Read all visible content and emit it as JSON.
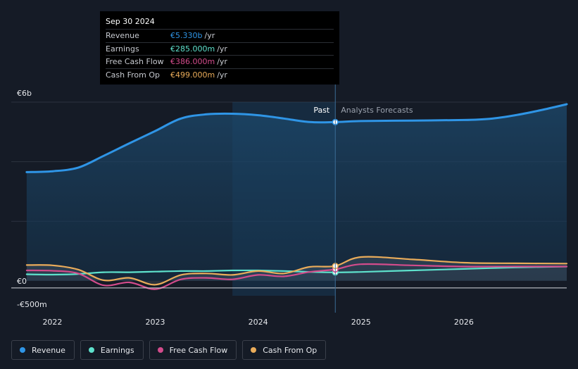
{
  "colors": {
    "revenue": "#2f95e6",
    "earnings": "#5ee1cc",
    "fcf": "#d34c8c",
    "cfo": "#eaac5a",
    "background": "#151b26"
  },
  "tooltip": {
    "date": "Sep 30 2024",
    "rows": [
      {
        "label": "Revenue",
        "value": "€5.330b",
        "unit": "/yr"
      },
      {
        "label": "Earnings",
        "value": "€285.000m",
        "unit": "/yr"
      },
      {
        "label": "Free Cash Flow",
        "value": "€386.000m",
        "unit": "/yr"
      },
      {
        "label": "Cash From Op",
        "value": "€499.000m",
        "unit": "/yr"
      }
    ]
  },
  "legend": [
    {
      "label": "Revenue",
      "icon": "revenue-dot-icon"
    },
    {
      "label": "Earnings",
      "icon": "earnings-dot-icon"
    },
    {
      "label": "Free Cash Flow",
      "icon": "fcf-dot-icon"
    },
    {
      "label": "Cash From Op",
      "icon": "cfo-dot-icon"
    }
  ],
  "chart_data": {
    "type": "line",
    "title": "",
    "ylabel": "",
    "xlabel": "",
    "y_tick_labels": [
      {
        "label": "€6b",
        "value": 6000
      },
      {
        "label": "€0",
        "value": 0
      },
      {
        "label": "-€500m",
        "value": -500
      }
    ],
    "ylim": [
      -500,
      6000
    ],
    "xlim": [
      2021.6,
      2027.0
    ],
    "x_ticks": [
      {
        "label": "2022",
        "value": 2022
      },
      {
        "label": "2023",
        "value": 2023
      },
      {
        "label": "2024",
        "value": 2024
      },
      {
        "label": "2025",
        "value": 2025
      },
      {
        "label": "2026",
        "value": 2026
      }
    ],
    "past_label": "Past",
    "forecast_label": "Analysts Forecasts",
    "divider_x": 2024.75,
    "highlight_start_x": 2023.75,
    "series": [
      {
        "name": "Revenue",
        "color_key": "revenue",
        "points": [
          [
            2021.75,
            3650
          ],
          [
            2022.0,
            3680
          ],
          [
            2022.25,
            3800
          ],
          [
            2022.5,
            4200
          ],
          [
            2022.75,
            4620
          ],
          [
            2023.0,
            5030
          ],
          [
            2023.25,
            5450
          ],
          [
            2023.5,
            5590
          ],
          [
            2023.75,
            5610
          ],
          [
            2024.0,
            5560
          ],
          [
            2024.25,
            5450
          ],
          [
            2024.5,
            5330
          ],
          [
            2024.75,
            5330
          ],
          [
            2025.0,
            5365
          ],
          [
            2025.5,
            5380
          ],
          [
            2026.0,
            5400
          ],
          [
            2026.25,
            5440
          ],
          [
            2026.5,
            5560
          ],
          [
            2026.75,
            5730
          ],
          [
            2027.0,
            5930
          ]
        ]
      },
      {
        "name": "Earnings",
        "color_key": "earnings",
        "points": [
          [
            2021.75,
            220
          ],
          [
            2022.0,
            210
          ],
          [
            2022.25,
            230
          ],
          [
            2022.5,
            290
          ],
          [
            2022.75,
            290
          ],
          [
            2023.0,
            310
          ],
          [
            2023.25,
            330
          ],
          [
            2023.5,
            330
          ],
          [
            2023.75,
            350
          ],
          [
            2024.0,
            350
          ],
          [
            2024.25,
            330
          ],
          [
            2024.5,
            300
          ],
          [
            2024.75,
            285
          ],
          [
            2025.0,
            300
          ],
          [
            2025.5,
            350
          ],
          [
            2026.0,
            400
          ],
          [
            2026.5,
            450
          ],
          [
            2027.0,
            480
          ]
        ]
      },
      {
        "name": "Free Cash Flow",
        "color_key": "fcf",
        "points": [
          [
            2021.75,
            350
          ],
          [
            2022.0,
            340
          ],
          [
            2022.25,
            250
          ],
          [
            2022.5,
            -150
          ],
          [
            2022.75,
            -50
          ],
          [
            2023.0,
            -280
          ],
          [
            2023.25,
            50
          ],
          [
            2023.5,
            100
          ],
          [
            2023.75,
            50
          ],
          [
            2024.0,
            200
          ],
          [
            2024.25,
            150
          ],
          [
            2024.5,
            300
          ],
          [
            2024.75,
            386
          ],
          [
            2025.0,
            560
          ],
          [
            2025.5,
            520
          ],
          [
            2026.0,
            480
          ],
          [
            2026.5,
            480
          ],
          [
            2027.0,
            480
          ]
        ]
      },
      {
        "name": "Cash From Op",
        "color_key": "cfo",
        "points": [
          [
            2021.75,
            530
          ],
          [
            2022.0,
            520
          ],
          [
            2022.25,
            380
          ],
          [
            2022.5,
            20
          ],
          [
            2022.75,
            100
          ],
          [
            2023.0,
            -130
          ],
          [
            2023.25,
            200
          ],
          [
            2023.5,
            250
          ],
          [
            2023.75,
            200
          ],
          [
            2024.0,
            330
          ],
          [
            2024.25,
            250
          ],
          [
            2024.5,
            470
          ],
          [
            2024.75,
            499
          ],
          [
            2025.0,
            800
          ],
          [
            2025.5,
            720
          ],
          [
            2026.0,
            610
          ],
          [
            2026.5,
            590
          ],
          [
            2027.0,
            580
          ]
        ]
      }
    ]
  }
}
